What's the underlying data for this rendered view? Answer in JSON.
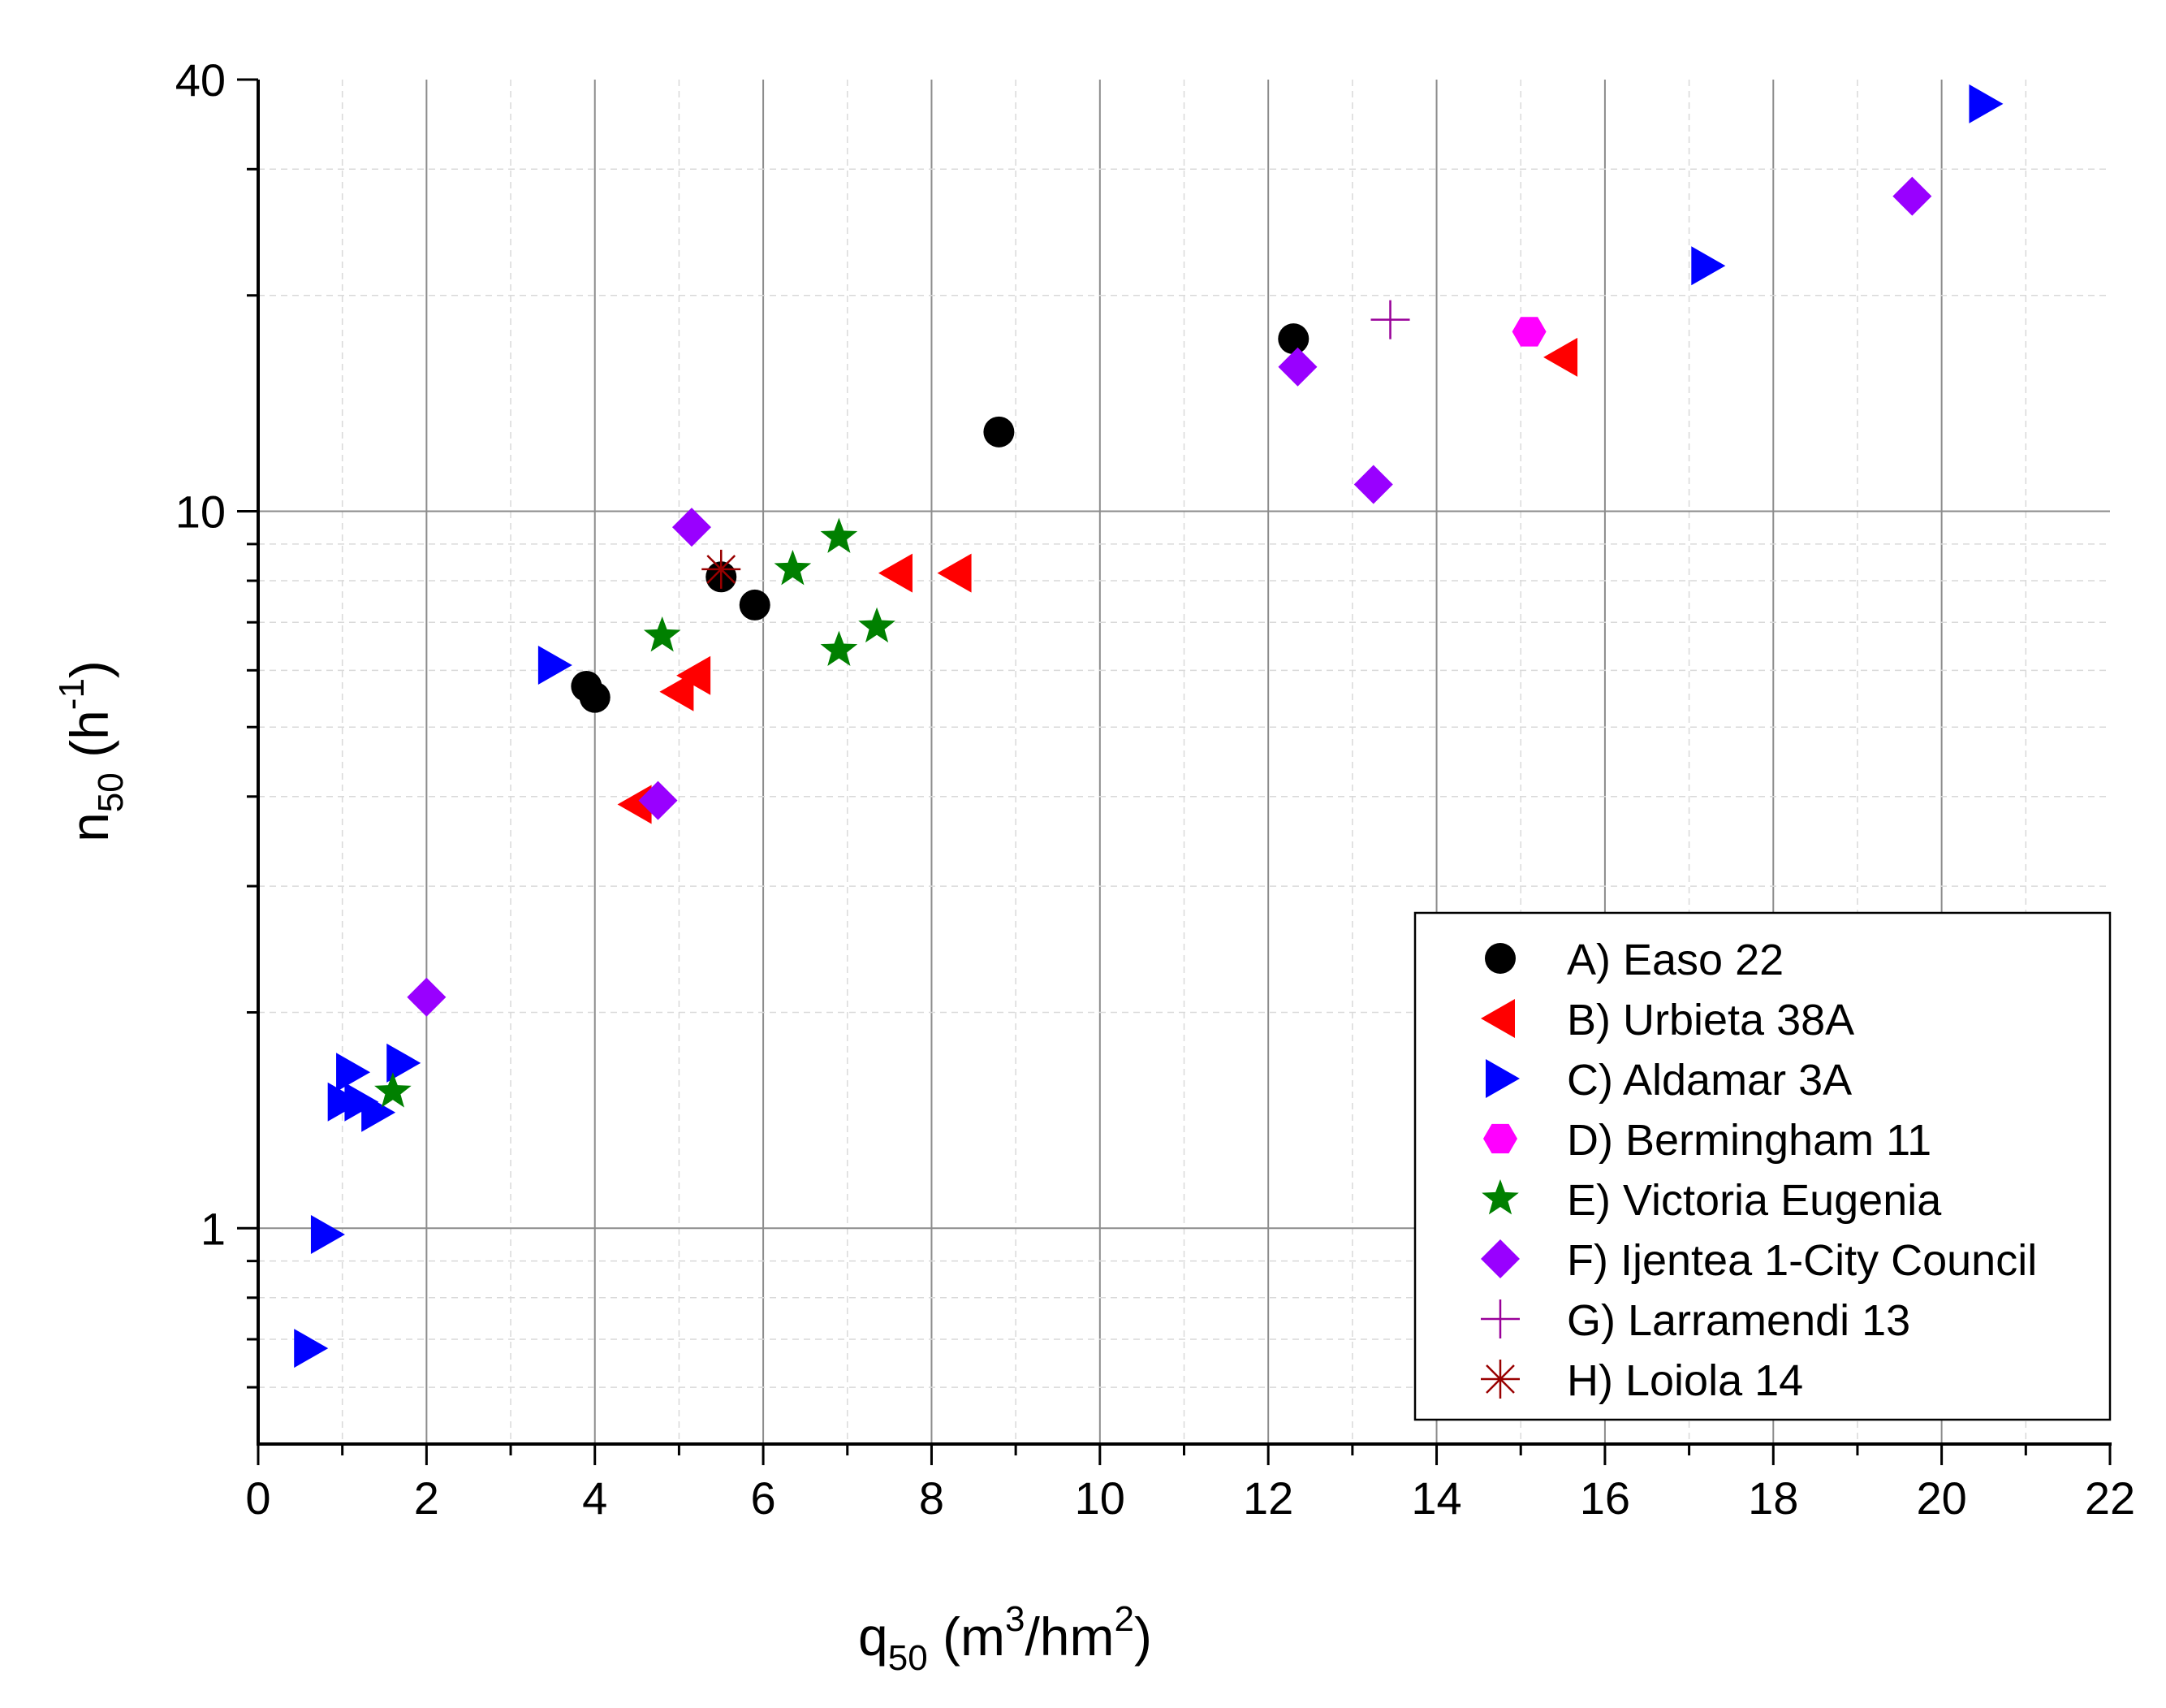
{
  "chart_data": {
    "type": "scatter",
    "xlabel": {
      "main": "q",
      "sub": "50",
      "open": " (m",
      "sup1": "3",
      "mid": "/hm",
      "sup2": "2",
      "close": ")"
    },
    "ylabel": {
      "main": "n",
      "sub": "50",
      "open": " (h",
      "sup": "-1",
      "close": ")"
    },
    "x_axis": {
      "min": 0,
      "max": 22,
      "major_step": 2,
      "minor_step": 1,
      "grid": true
    },
    "y_axis": {
      "scale": "log",
      "min": 0.5,
      "max": 40,
      "major_ticks": [
        1,
        10,
        40
      ],
      "grid": true
    },
    "x_tick_labels": [
      "0",
      "2",
      "4",
      "6",
      "8",
      "10",
      "12",
      "14",
      "16",
      "18",
      "20",
      "22"
    ],
    "y_tick_labels": [
      {
        "value": 1,
        "label": "1"
      },
      {
        "value": 10,
        "label": "10"
      },
      {
        "value": 40,
        "label": "40"
      }
    ],
    "legend_position": "bottom-right",
    "series": [
      {
        "name": "A) Easo 22",
        "marker": "circle",
        "color": "#000000",
        "points": [
          [
            3.9,
            5.7
          ],
          [
            4.0,
            5.5
          ],
          [
            5.5,
            8.1
          ],
          [
            5.9,
            7.4
          ],
          [
            8.8,
            12.9
          ],
          [
            12.3,
            17.4
          ]
        ]
      },
      {
        "name": "B) Urbieta 38A",
        "marker": "triangle-left",
        "color": "#ff0000",
        "points": [
          [
            4.5,
            3.9
          ],
          [
            5.0,
            5.6
          ],
          [
            5.2,
            5.9
          ],
          [
            7.6,
            8.2
          ],
          [
            8.3,
            8.2
          ],
          [
            15.5,
            16.4
          ]
        ]
      },
      {
        "name": "C) Aldamar 3A",
        "marker": "triangle-right",
        "color": "#0000ff",
        "points": [
          [
            0.6,
            0.68
          ],
          [
            0.8,
            0.98
          ],
          [
            1.0,
            1.5
          ],
          [
            1.1,
            1.65
          ],
          [
            1.2,
            1.5
          ],
          [
            1.4,
            1.45
          ],
          [
            1.7,
            1.7
          ],
          [
            3.5,
            6.1
          ],
          [
            17.2,
            22.0
          ],
          [
            20.5,
            37.0
          ]
        ]
      },
      {
        "name": "D) Bermingham 11",
        "marker": "hexagon",
        "color": "#ff00ff",
        "points": [
          [
            15.1,
            17.8
          ]
        ]
      },
      {
        "name": "E) Victoria Eugenia",
        "marker": "star",
        "color": "#008000",
        "points": [
          [
            1.6,
            1.55
          ],
          [
            4.8,
            6.7
          ],
          [
            6.35,
            8.3
          ],
          [
            6.9,
            9.2
          ],
          [
            6.9,
            6.4
          ],
          [
            7.35,
            6.9
          ]
        ]
      },
      {
        "name": "F) Ijentea 1-City Council",
        "marker": "diamond",
        "color": "#9900ff",
        "points": [
          [
            2.0,
            2.1
          ],
          [
            4.75,
            3.95
          ],
          [
            5.15,
            9.5
          ],
          [
            12.35,
            15.9
          ],
          [
            13.25,
            10.9
          ],
          [
            19.65,
            27.5
          ]
        ]
      },
      {
        "name": "G) Larramendi 13",
        "marker": "plus",
        "color": "#990099",
        "points": [
          [
            13.45,
            18.5
          ]
        ]
      },
      {
        "name": "H) Loiola 14",
        "marker": "asterisk",
        "color": "#990000",
        "points": [
          [
            5.5,
            8.3
          ]
        ]
      }
    ]
  }
}
